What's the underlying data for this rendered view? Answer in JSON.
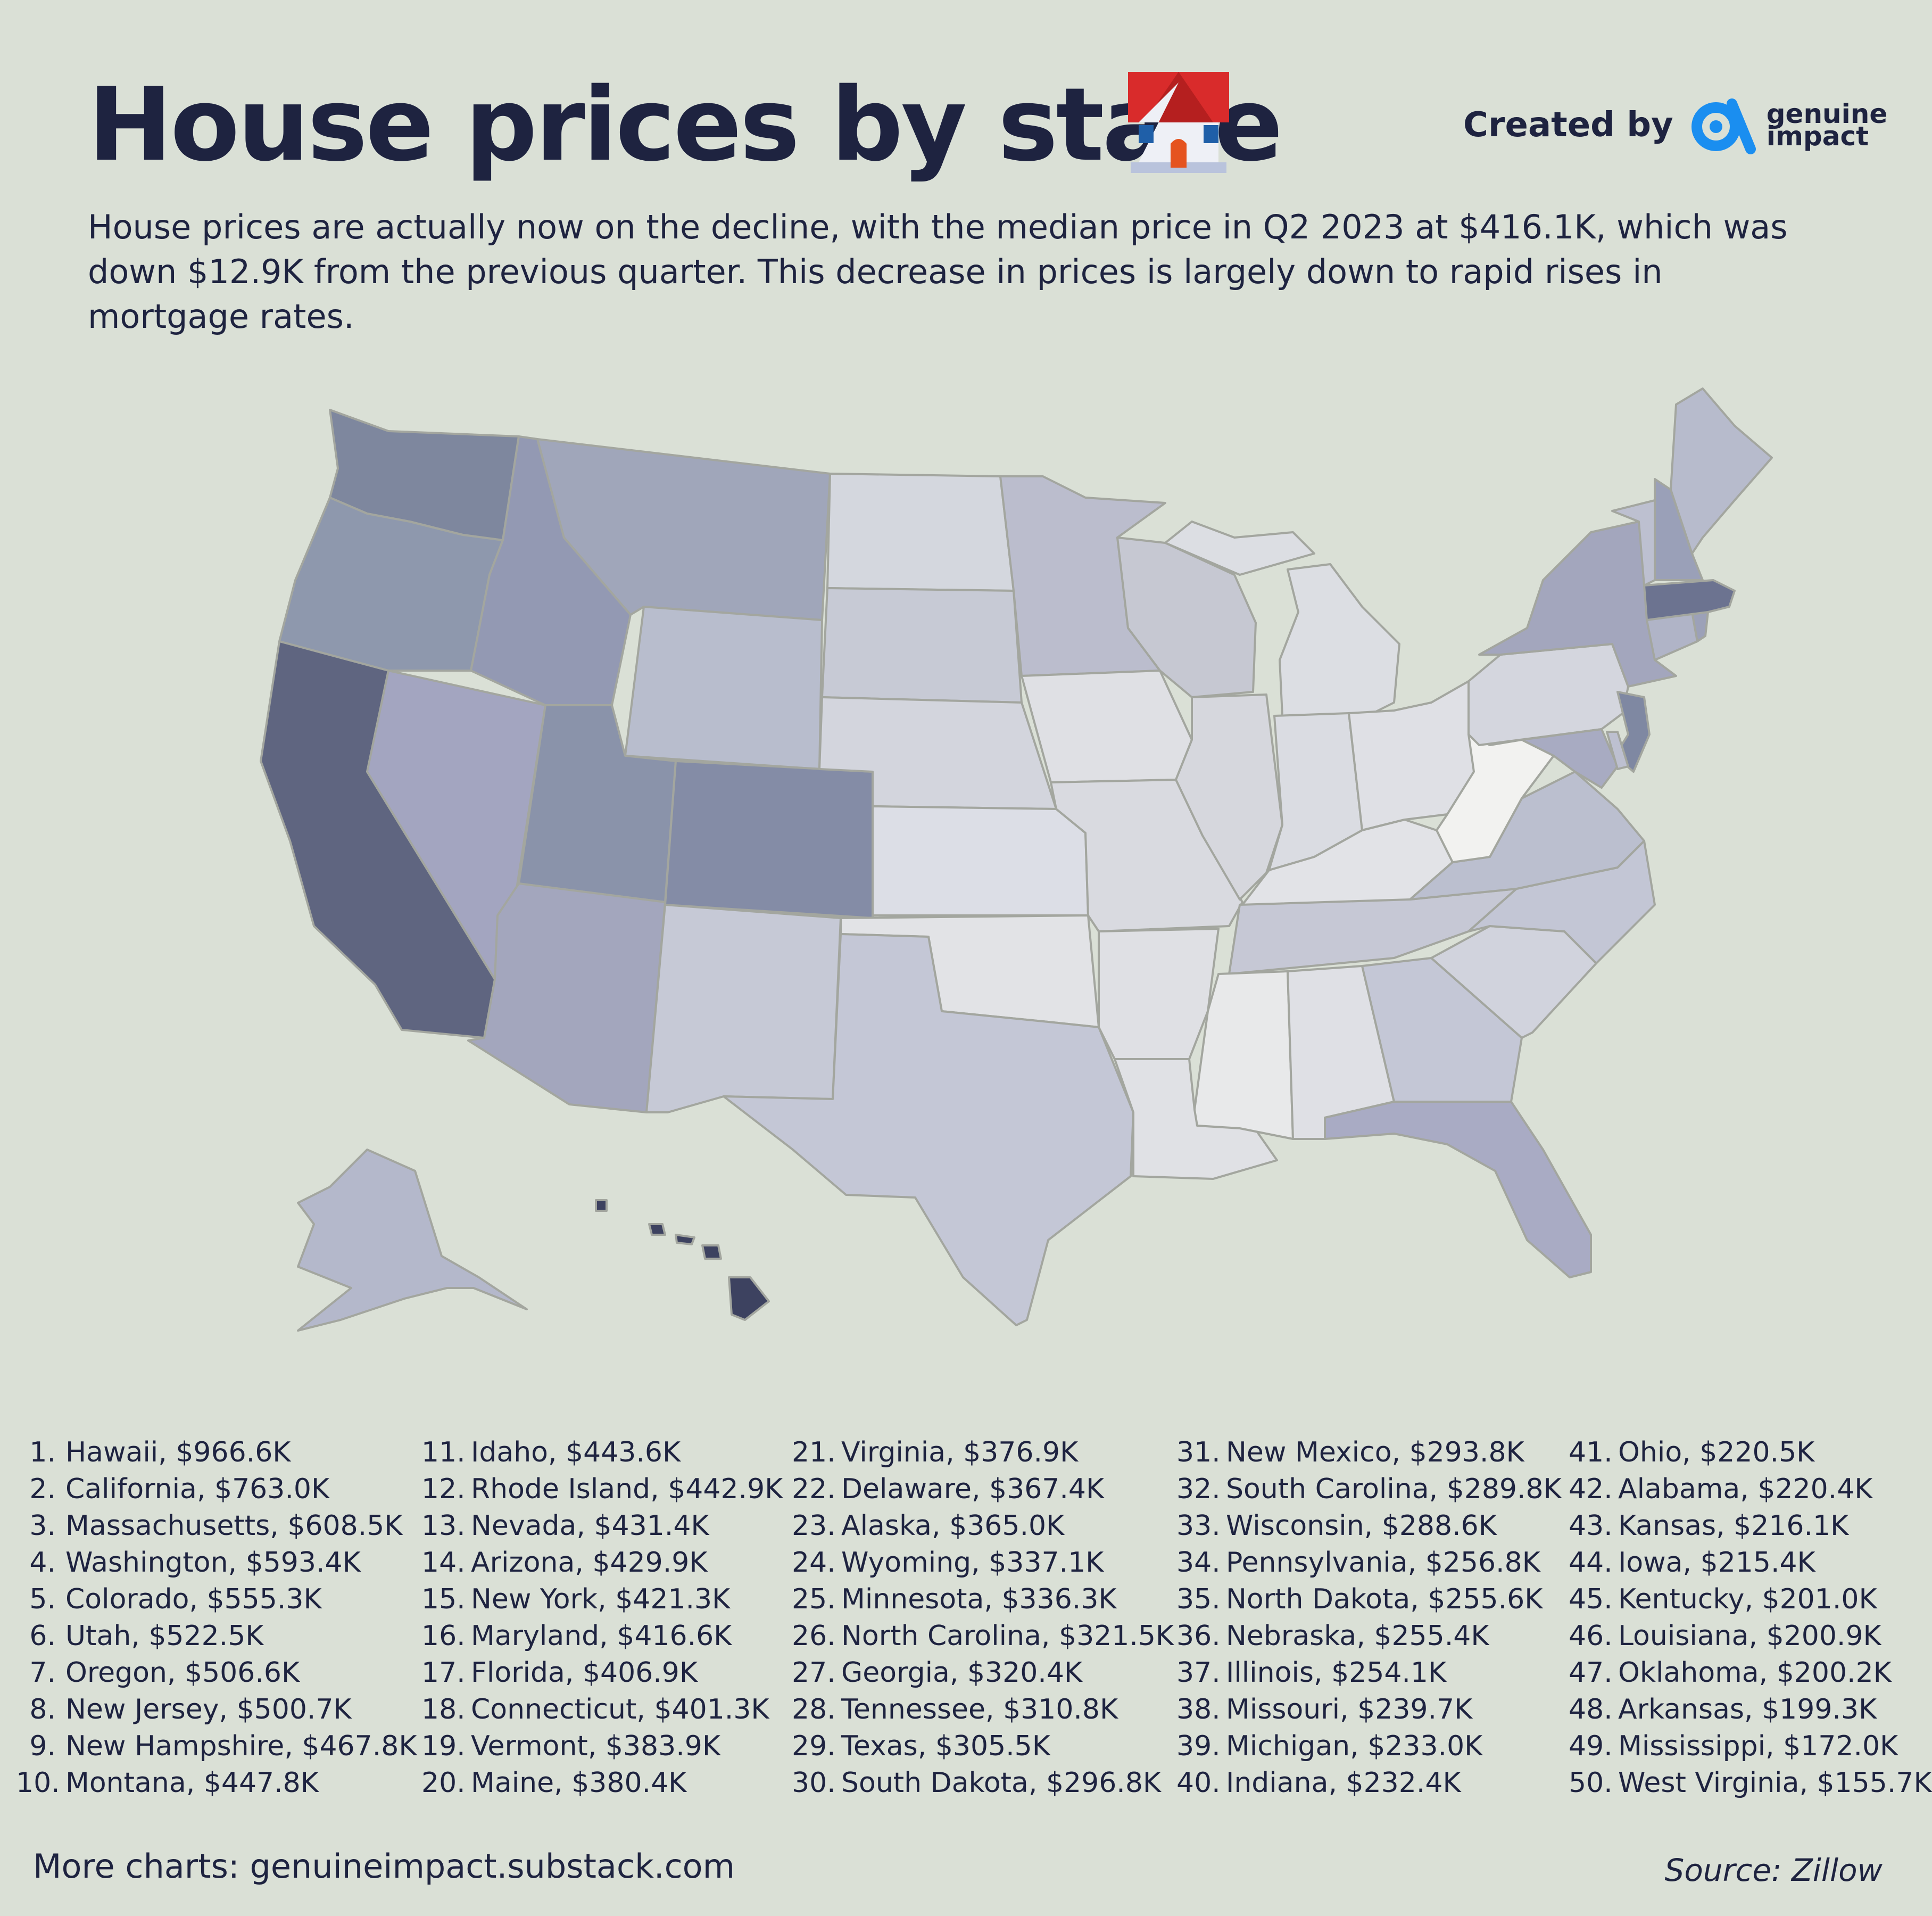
{
  "title": "House prices by state",
  "icon": "house-emoji-icon",
  "brand": {
    "created_by": "Created by",
    "name_line1": "genuine",
    "name_line2": "impact",
    "logo": "genuine-impact-logo-icon",
    "logo_color": "#1a8ef0"
  },
  "subtitle": "House prices are actually now on the decline, with the median price in Q2 2023 at $416.1K, which was down $12.9K from the previous quarter. This decrease in prices is largely down to rapid rises in mortgage rates.",
  "colors": {
    "background": "#dae0d6",
    "lowest": "#f2f2f0",
    "highest": "#3d4260"
  },
  "rankings": [
    {
      "rank": "1.",
      "state": "Hawaii",
      "price": "$966.6K"
    },
    {
      "rank": "2.",
      "state": "California",
      "price": "$763.0K"
    },
    {
      "rank": "3.",
      "state": "Massachusetts",
      "price": "$608.5K"
    },
    {
      "rank": "4.",
      "state": "Washington",
      "price": "$593.4K"
    },
    {
      "rank": "5.",
      "state": "Colorado",
      "price": "$555.3K"
    },
    {
      "rank": "6.",
      "state": "Utah",
      "price": "$522.5K"
    },
    {
      "rank": "7.",
      "state": "Oregon",
      "price": "$506.6K"
    },
    {
      "rank": "8.",
      "state": "New Jersey",
      "price": "$500.7K"
    },
    {
      "rank": "9.",
      "state": "New Hampshire",
      "price": "$467.8K"
    },
    {
      "rank": "10.",
      "state": "Montana",
      "price": "$447.8K"
    },
    {
      "rank": "11.",
      "state": "Idaho",
      "price": "$443.6K"
    },
    {
      "rank": "12.",
      "state": "Rhode Island",
      "price": "$442.9K"
    },
    {
      "rank": "13.",
      "state": "Nevada",
      "price": "$431.4K"
    },
    {
      "rank": "14.",
      "state": "Arizona",
      "price": "$429.9K"
    },
    {
      "rank": "15.",
      "state": "New York",
      "price": "$421.3K"
    },
    {
      "rank": "16.",
      "state": "Maryland",
      "price": "$416.6K"
    },
    {
      "rank": "17.",
      "state": "Florida",
      "price": "$406.9K"
    },
    {
      "rank": "18.",
      "state": "Connecticut",
      "price": "$401.3K"
    },
    {
      "rank": "19.",
      "state": "Vermont",
      "price": "$383.9K"
    },
    {
      "rank": "20.",
      "state": "Maine",
      "price": "$380.4K"
    },
    {
      "rank": "21.",
      "state": "Virginia",
      "price": "$376.9K"
    },
    {
      "rank": "22.",
      "state": "Delaware",
      "price": "$367.4K"
    },
    {
      "rank": "23.",
      "state": "Alaska",
      "price": "$365.0K"
    },
    {
      "rank": "24.",
      "state": "Wyoming",
      "price": "$337.1K"
    },
    {
      "rank": "25.",
      "state": "Minnesota",
      "price": "$336.3K"
    },
    {
      "rank": "26.",
      "state": "North Carolina",
      "price": "$321.5K"
    },
    {
      "rank": "27.",
      "state": "Georgia",
      "price": "$320.4K"
    },
    {
      "rank": "28.",
      "state": "Tennessee",
      "price": "$310.8K"
    },
    {
      "rank": "29.",
      "state": "Texas",
      "price": "$305.5K"
    },
    {
      "rank": "30.",
      "state": "South Dakota",
      "price": "$296.8K"
    },
    {
      "rank": "31.",
      "state": "New Mexico",
      "price": "$293.8K"
    },
    {
      "rank": "32.",
      "state": "South Carolina",
      "price": "$289.8K"
    },
    {
      "rank": "33.",
      "state": "Wisconsin",
      "price": "$288.6K"
    },
    {
      "rank": "34.",
      "state": "Pennsylvania",
      "price": "$256.8K"
    },
    {
      "rank": "35.",
      "state": "North Dakota",
      "price": "$255.6K"
    },
    {
      "rank": "36.",
      "state": "Nebraska",
      "price": "$255.4K"
    },
    {
      "rank": "37.",
      "state": "Illinois",
      "price": "$254.1K"
    },
    {
      "rank": "38.",
      "state": "Missouri",
      "price": "$239.7K"
    },
    {
      "rank": "39.",
      "state": "Michigan",
      "price": "$233.0K"
    },
    {
      "rank": "40.",
      "state": "Indiana",
      "price": "$232.4K"
    },
    {
      "rank": "41.",
      "state": "Ohio",
      "price": "$220.5K"
    },
    {
      "rank": "42.",
      "state": "Alabama",
      "price": "$220.4K"
    },
    {
      "rank": "43.",
      "state": "Kansas",
      "price": "$216.1K"
    },
    {
      "rank": "44.",
      "state": "Iowa",
      "price": "$215.4K"
    },
    {
      "rank": "45.",
      "state": "Kentucky",
      "price": "$201.0K"
    },
    {
      "rank": "46.",
      "state": "Louisiana",
      "price": "$200.9K"
    },
    {
      "rank": "47.",
      "state": "Oklahoma",
      "price": "$200.2K"
    },
    {
      "rank": "48.",
      "state": "Arkansas",
      "price": "$199.3K"
    },
    {
      "rank": "49.",
      "state": "Mississippi",
      "price": "$172.0K"
    },
    {
      "rank": "50.",
      "state": "West Virginia",
      "price": "$155.7K"
    }
  ],
  "footer": {
    "more": "More charts: genuineimpact.substack.com",
    "source": "Source: Zillow"
  }
}
